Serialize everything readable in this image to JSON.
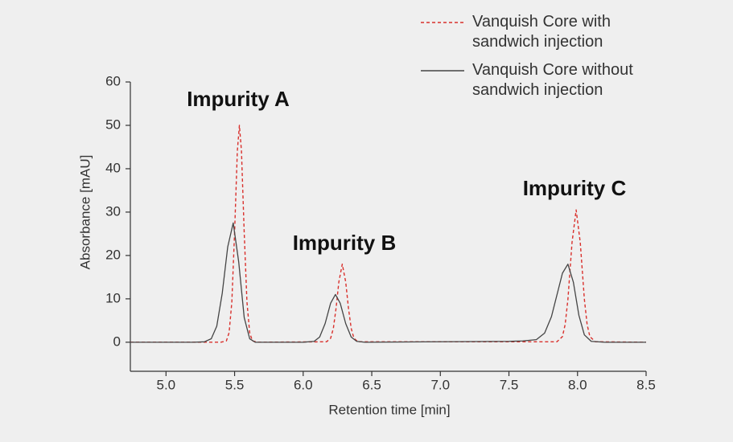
{
  "chart_data": {
    "type": "line",
    "x_label": "Retention time [min]",
    "y_label": "Absorbance [mAU]",
    "xlim": [
      4.74,
      8.5
    ],
    "ylim": [
      -6.7,
      60
    ],
    "xticks": [
      {
        "value": 5,
        "label": "5.0"
      },
      5.5,
      {
        "value": 6,
        "label": "6.0"
      },
      6.5,
      {
        "value": 7,
        "label": "7.0"
      },
      7.5,
      {
        "value": 8,
        "label": "8.0"
      },
      8.5
    ],
    "yticks": [
      0,
      10,
      20,
      30,
      40,
      50,
      60
    ],
    "annotations": [
      "Impurity A",
      "Impurity B",
      "Impurity C"
    ],
    "series": [
      {
        "name": "Vanquish Core with sandwich injection",
        "color": "#d9302c",
        "dashed": true,
        "x": [
          4.74,
          5.3,
          5.4,
          5.44,
          5.46,
          5.48,
          5.5,
          5.52,
          5.535,
          5.55,
          5.57,
          5.59,
          5.61,
          5.63,
          5.67,
          6.17,
          6.2,
          6.22,
          6.24,
          6.26,
          6.285,
          6.31,
          6.33,
          6.35,
          6.37,
          6.4,
          7.85,
          7.89,
          7.91,
          7.93,
          7.96,
          7.99,
          8.02,
          8.05,
          8.07,
          8.09,
          8.13,
          8.5
        ],
        "values": [
          0,
          0,
          0,
          0.3,
          2.2,
          9.3,
          25.3,
          44.1,
          50,
          44.1,
          25.3,
          9.3,
          2.2,
          0.3,
          0,
          0.1,
          0.9,
          3.2,
          7.9,
          13.9,
          18,
          13.9,
          7.9,
          3.2,
          0.9,
          0.1,
          0.1,
          1.3,
          4.1,
          9.9,
          23,
          30.5,
          23,
          9.9,
          4.1,
          1.3,
          0.1,
          0
        ]
      },
      {
        "name": "Vanquish Core without sandwich injection",
        "color": "#444444",
        "dashed": false,
        "x": [
          4.74,
          5.2,
          5.28,
          5.33,
          5.37,
          5.41,
          5.45,
          5.49,
          5.53,
          5.57,
          5.61,
          5.65,
          5.7,
          6.0,
          6.08,
          6.12,
          6.16,
          6.2,
          6.235,
          6.27,
          6.31,
          6.35,
          6.39,
          6.45,
          7.5,
          7.6,
          7.7,
          7.76,
          7.81,
          7.85,
          7.89,
          7.93,
          7.97,
          8.01,
          8.05,
          8.1,
          8.2,
          8.5
        ],
        "values": [
          0,
          0,
          0.1,
          0.8,
          3.7,
          11.3,
          22,
          27.5,
          18.5,
          5.7,
          0.8,
          0,
          0,
          0,
          0.2,
          1.2,
          4.3,
          9,
          11,
          9,
          4.3,
          1.2,
          0.2,
          0,
          0.2,
          0.3,
          0.6,
          2.1,
          5.9,
          10.9,
          15.9,
          18,
          13.8,
          6.2,
          1.7,
          0.2,
          0,
          0
        ]
      }
    ]
  }
}
